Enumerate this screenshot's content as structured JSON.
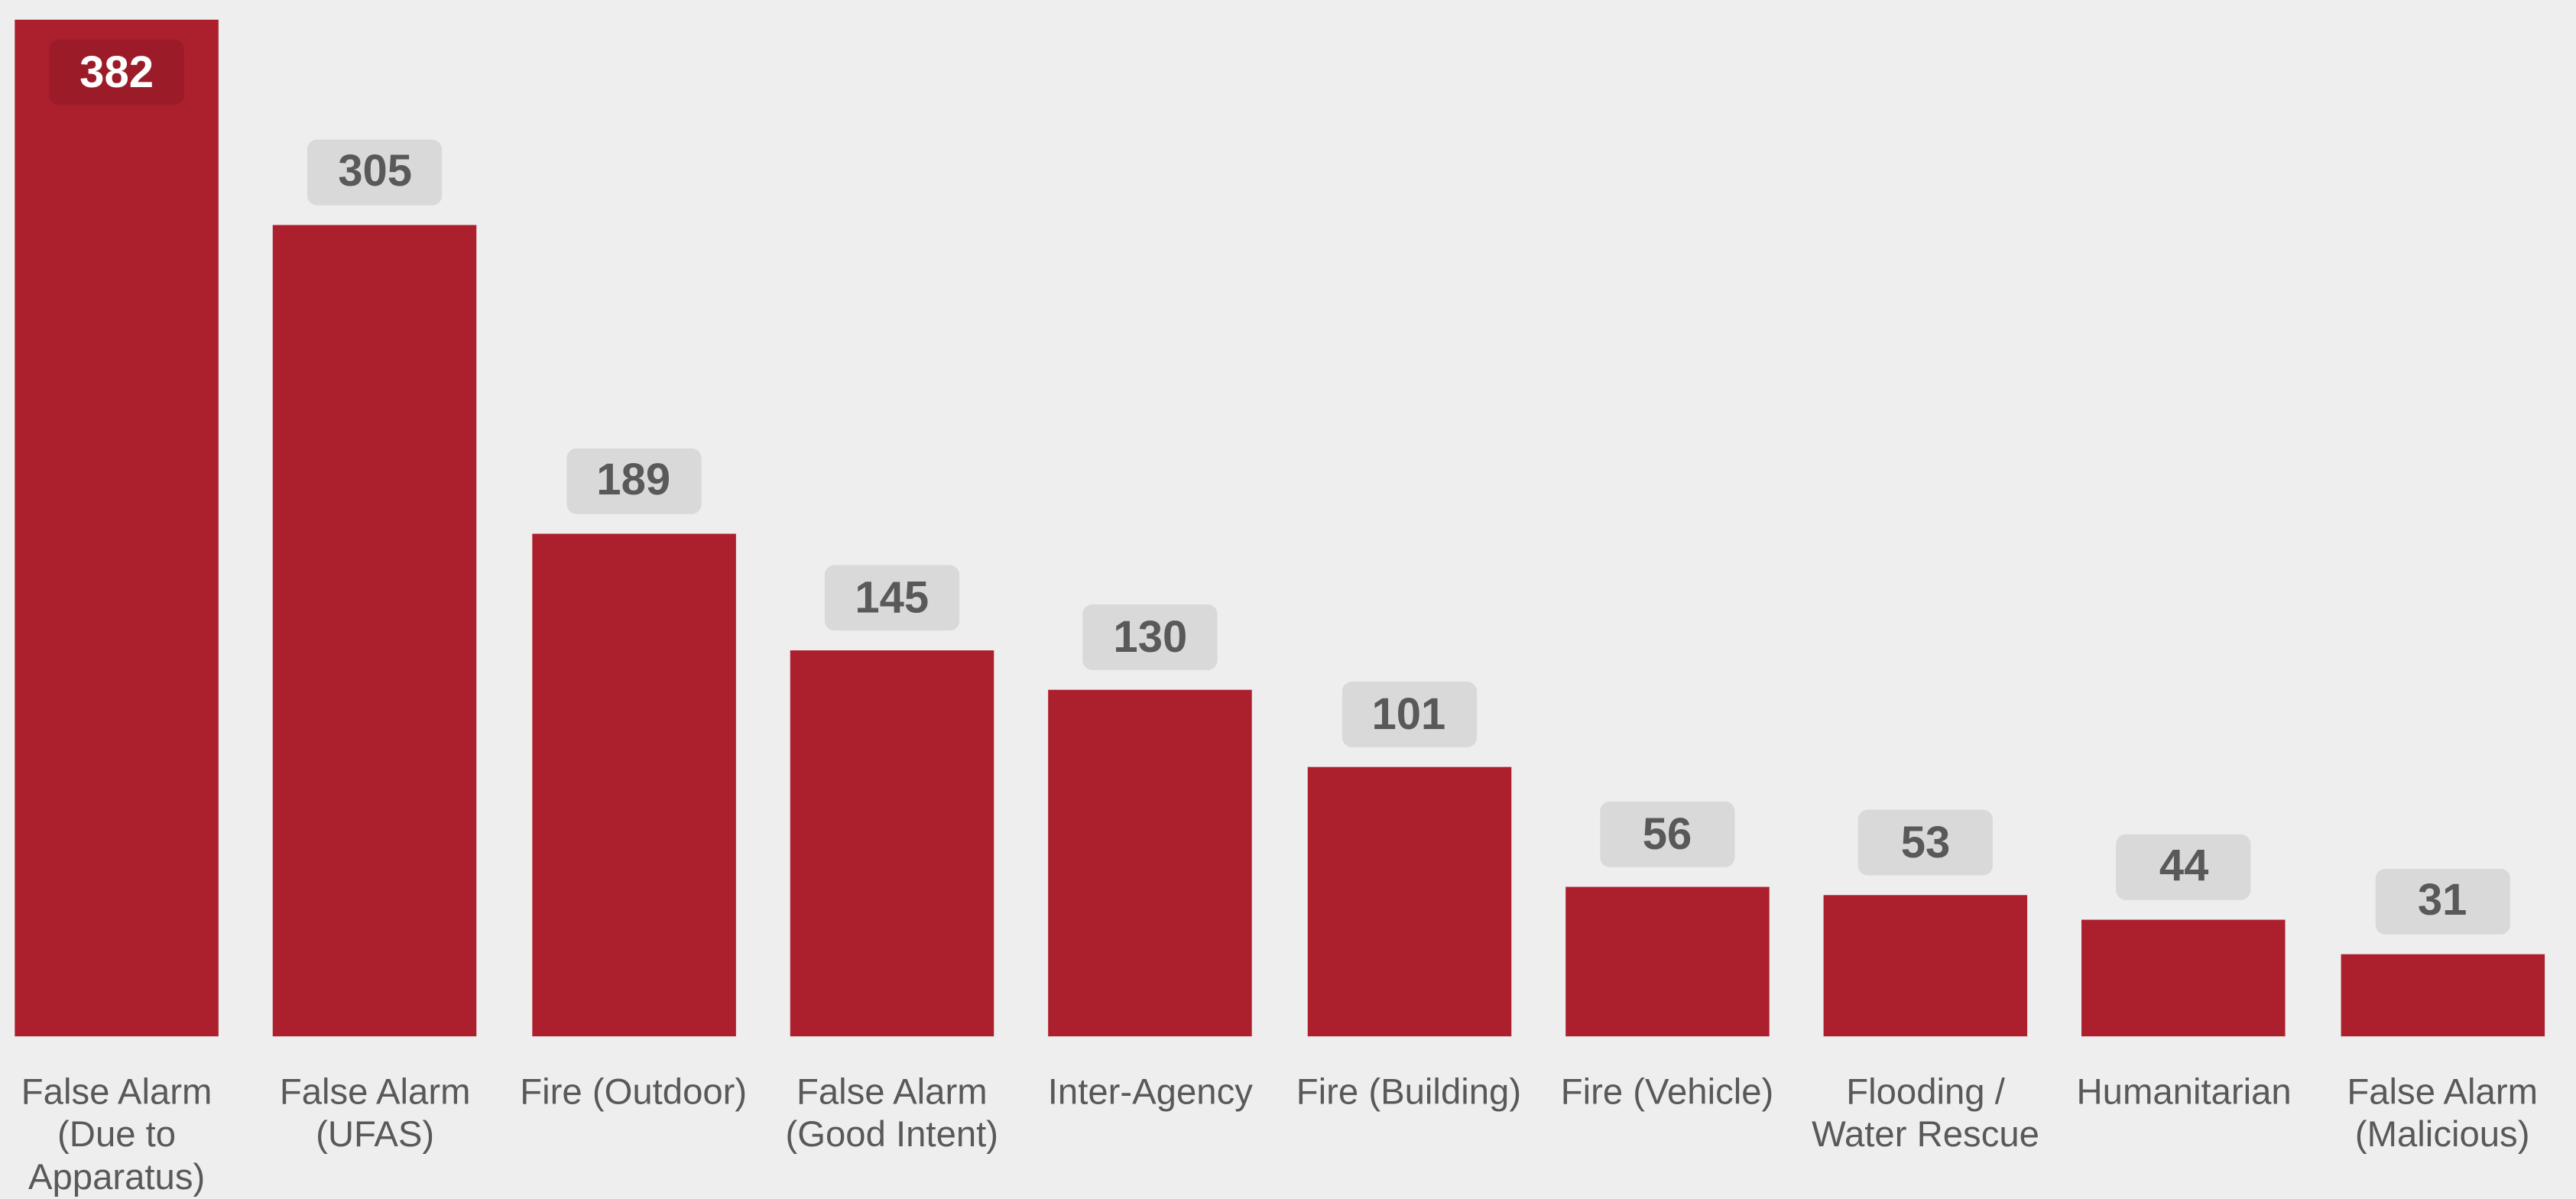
{
  "chart_data": {
    "type": "bar",
    "categories": [
      "False Alarm (Due to Apparatus)",
      "False Alarm (UFAS)",
      "Fire (Outdoor)",
      "False Alarm (Good Intent)",
      "Inter-Agency",
      "Fire (Building)",
      "Fire (Vehicle)",
      "Flooding / Water Rescue",
      "Humanitarian",
      "False Alarm (Malicious)"
    ],
    "values": [
      382,
      305,
      189,
      145,
      130,
      101,
      56,
      53,
      44,
      31
    ],
    "color": "#ac1f2d"
  }
}
